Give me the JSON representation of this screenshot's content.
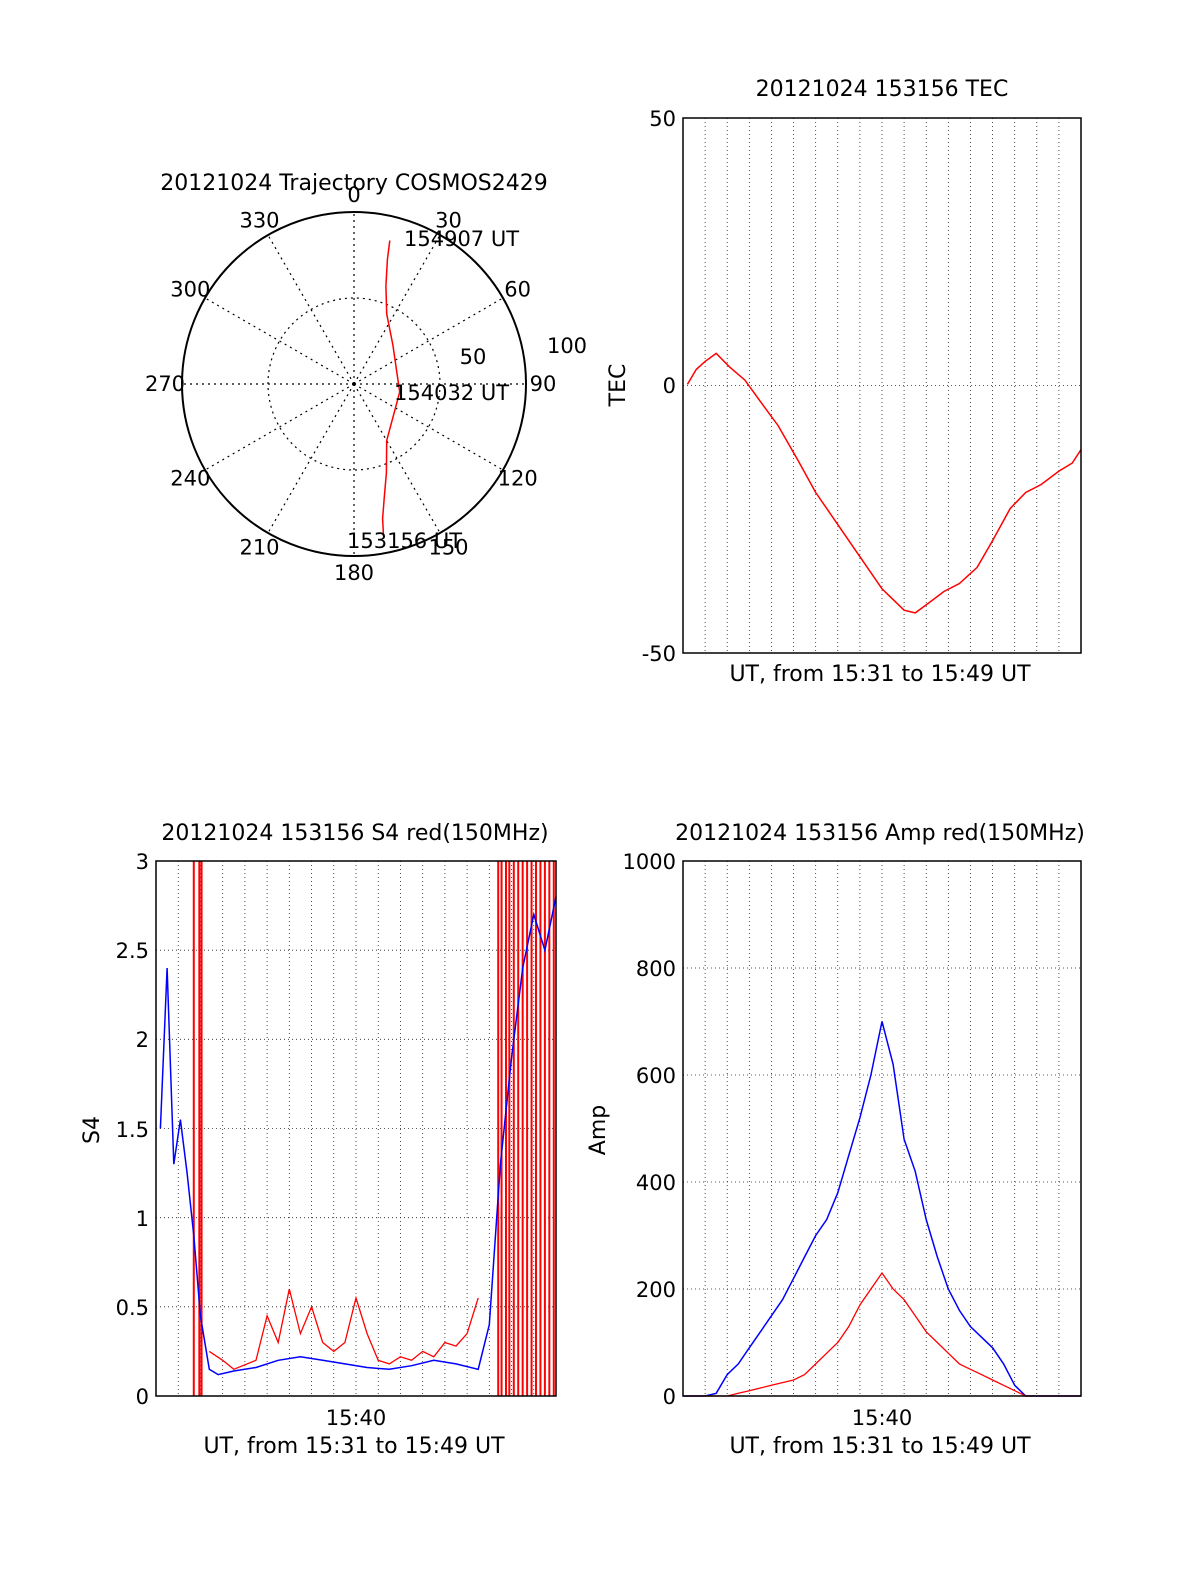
{
  "chart_data": [
    {
      "type": "polar",
      "title": "20121024 Trajectory COSMOS2429",
      "azimuth_labels": [
        "0",
        "30",
        "60",
        "90",
        "120",
        "150",
        "180",
        "210",
        "240",
        "270",
        "300",
        "330"
      ],
      "ring_labels": [
        "50",
        "100"
      ],
      "radius_max": 100,
      "series": [
        {
          "color": "#ff0000",
          "points": [
            {
              "az": 14,
              "r": 86
            },
            {
              "az": 15,
              "r": 75
            },
            {
              "az": 18,
              "r": 60
            },
            {
              "az": 25,
              "r": 45
            },
            {
              "az": 45,
              "r": 32
            },
            {
              "az": 100,
              "r": 27
            },
            {
              "az": 150,
              "r": 38
            },
            {
              "az": 160,
              "r": 55
            },
            {
              "az": 165,
              "r": 68
            },
            {
              "az": 168,
              "r": 80
            },
            {
              "az": 169,
              "r": 90
            }
          ]
        }
      ],
      "annotations": [
        "154907 UT",
        "154032 UT",
        "153156 UT"
      ]
    },
    {
      "type": "line",
      "title": "20121024 153156 TEC",
      "xlabel": "UT, from 15:31 to 15:49 UT",
      "ylabel": "TEC",
      "xlim": [
        0,
        18
      ],
      "ylim": [
        -50,
        50
      ],
      "yticks": [
        "-50",
        "0",
        "50"
      ],
      "grid": true,
      "series": [
        {
          "color": "#ff0000",
          "x": [
            0.2,
            0.6,
            1.0,
            1.5,
            2.1,
            2.8,
            3.5,
            4.3,
            5.2,
            6.0,
            7.0,
            8.0,
            9.0,
            10.0,
            10.5,
            11.0,
            11.8,
            12.5,
            13.3,
            14.0,
            14.8,
            15.5,
            16.2,
            17.0,
            17.6,
            18.0
          ],
          "y": [
            0.2,
            3.0,
            4.5,
            6.0,
            3.5,
            1.0,
            -3.0,
            -7.5,
            -14.0,
            -20.0,
            -26.0,
            -32.0,
            -38.0,
            -42.0,
            -42.5,
            -41.0,
            -38.5,
            -37.0,
            -34.0,
            -29.0,
            -23.0,
            -20.0,
            -18.5,
            -16.0,
            -14.5,
            -12.0
          ]
        }
      ]
    },
    {
      "type": "line",
      "title": "20121024 153156 S4 red(150MHz)",
      "xlabel": "UT, from 15:31 to 15:49 UT",
      "ylabel": "S4",
      "xtick_label": "15:40",
      "xlim": [
        0,
        18
      ],
      "ylim": [
        0,
        3
      ],
      "yticks": [
        "0",
        "0.5",
        "1",
        "1.5",
        "2",
        "2.5",
        "3"
      ],
      "grid": true,
      "series": [
        {
          "color": "#0000ff",
          "x": [
            0.2,
            0.5,
            0.8,
            1.1,
            1.4,
            1.7,
            2.0,
            2.4,
            2.8,
            3.5,
            4.5,
            5.5,
            6.5,
            7.5,
            8.5,
            9.5,
            10.5,
            11.5,
            12.5,
            13.5,
            14.5,
            15.0,
            15.5,
            16.0,
            16.5,
            17.0,
            17.5,
            18.0
          ],
          "y": [
            1.5,
            2.4,
            1.3,
            1.55,
            1.25,
            0.9,
            0.45,
            0.15,
            0.12,
            0.14,
            0.16,
            0.2,
            0.22,
            0.2,
            0.18,
            0.16,
            0.15,
            0.17,
            0.2,
            0.18,
            0.15,
            0.4,
            1.3,
            1.9,
            2.4,
            2.7,
            2.5,
            2.8
          ]
        },
        {
          "color": "#ff0000",
          "x": [
            2.4,
            3.0,
            3.5,
            4.5,
            5.0,
            5.5,
            6.0,
            6.5,
            7.0,
            7.5,
            8.0,
            8.5,
            9.0,
            9.5,
            10.0,
            10.5,
            11.0,
            11.5,
            12.0,
            12.5,
            13.0,
            13.5,
            14.0,
            14.5
          ],
          "y": [
            0.25,
            0.2,
            0.15,
            0.2,
            0.45,
            0.3,
            0.6,
            0.35,
            0.5,
            0.3,
            0.25,
            0.3,
            0.55,
            0.35,
            0.2,
            0.18,
            0.22,
            0.2,
            0.25,
            0.22,
            0.3,
            0.28,
            0.35,
            0.55
          ]
        }
      ],
      "red_spikes_x": [
        1.7,
        1.95,
        2.05,
        15.4,
        15.55,
        15.75,
        15.9,
        16.1,
        16.3,
        16.5,
        16.7,
        16.9,
        17.1,
        17.3,
        17.5,
        17.7,
        17.9
      ]
    },
    {
      "type": "line",
      "title": "20121024 153156 Amp red(150MHz)",
      "xlabel": "UT, from 15:31 to 15:49 UT",
      "ylabel": "Amp",
      "xtick_label": "15:40",
      "xlim": [
        0,
        18
      ],
      "ylim": [
        0,
        1000
      ],
      "yticks": [
        "0",
        "200",
        "400",
        "600",
        "800",
        "1000"
      ],
      "grid": true,
      "series": [
        {
          "color": "#0000ff",
          "x": [
            0.0,
            1.0,
            1.5,
            2.0,
            2.5,
            3.0,
            3.5,
            4.0,
            4.5,
            5.0,
            5.5,
            6.0,
            6.5,
            7.0,
            7.5,
            8.0,
            8.5,
            9.0,
            9.5,
            10.0,
            10.5,
            11.0,
            11.5,
            12.0,
            12.5,
            13.0,
            13.5,
            14.0,
            14.5,
            15.0,
            15.5,
            16.0,
            18.0
          ],
          "y": [
            0,
            0,
            5,
            40,
            60,
            90,
            120,
            150,
            180,
            220,
            260,
            300,
            330,
            380,
            450,
            520,
            600,
            700,
            620,
            480,
            420,
            330,
            260,
            200,
            160,
            130,
            110,
            90,
            60,
            20,
            0,
            0,
            0
          ]
        },
        {
          "color": "#ff0000",
          "x": [
            0.0,
            1.5,
            2.0,
            2.5,
            3.0,
            3.5,
            4.0,
            4.5,
            5.0,
            5.5,
            6.0,
            6.5,
            7.0,
            7.5,
            8.0,
            8.5,
            9.0,
            9.5,
            10.0,
            10.5,
            11.0,
            11.5,
            12.0,
            12.5,
            13.0,
            13.5,
            14.0,
            14.5,
            15.0,
            15.5,
            16.0,
            18.0
          ],
          "y": [
            0,
            0,
            0,
            5,
            10,
            15,
            20,
            25,
            30,
            40,
            60,
            80,
            100,
            130,
            170,
            200,
            230,
            200,
            180,
            150,
            120,
            100,
            80,
            60,
            50,
            40,
            30,
            20,
            10,
            0,
            0,
            0
          ]
        }
      ]
    }
  ]
}
